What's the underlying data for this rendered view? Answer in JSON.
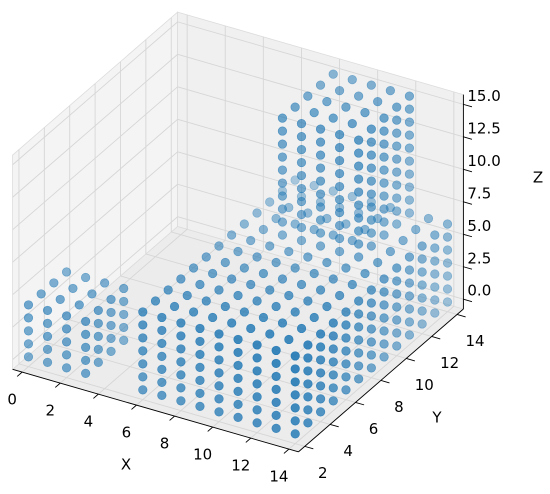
{
  "chart_data": {
    "type": "scatter3d",
    "color": "#1f77b4",
    "xlabel": "X",
    "ylabel": "Y",
    "zlabel": "Z",
    "xlim": [
      -0.5,
      14.5
    ],
    "ylim": [
      1.5,
      14.5
    ],
    "zlim": [
      -0.75,
      15.75
    ],
    "xticks": [
      0,
      2,
      4,
      6,
      8,
      10,
      12,
      14
    ],
    "yticks": [
      2,
      4,
      6,
      8,
      10,
      12,
      14
    ],
    "zticks": [
      {
        "value": 0,
        "label": "0.0"
      },
      {
        "value": 2.5,
        "label": "2.5"
      },
      {
        "value": 5,
        "label": "5.0"
      },
      {
        "value": 7.5,
        "label": "7.5"
      },
      {
        "value": 10,
        "label": "10.0"
      },
      {
        "value": 12.5,
        "label": "12.5"
      },
      {
        "value": 15,
        "label": "15.0"
      }
    ],
    "grid": true,
    "x": [
      0,
      0,
      0,
      0,
      1,
      1,
      1,
      1,
      2,
      2,
      2,
      2,
      3,
      3,
      3,
      3,
      0,
      0,
      0,
      0,
      1,
      1,
      1,
      1,
      2,
      2,
      2,
      2,
      3,
      3,
      3,
      3,
      3,
      3,
      3,
      3,
      3,
      3,
      3,
      3,
      3,
      3,
      3,
      3,
      6,
      6,
      6,
      6,
      6,
      6,
      6,
      6,
      6,
      6,
      6,
      6,
      6,
      7,
      7,
      7,
      7,
      7,
      7,
      7,
      7,
      7,
      7,
      7,
      7,
      7,
      8,
      8,
      8,
      8,
      8,
      8,
      8,
      8,
      8,
      8,
      8,
      8,
      8,
      9,
      9,
      9,
      9,
      9,
      9,
      9,
      9,
      9,
      9,
      9,
      9,
      9,
      10,
      10,
      10,
      10,
      10,
      10,
      10,
      10,
      10,
      10,
      10,
      10,
      10,
      11,
      11,
      11,
      11,
      11,
      11,
      11,
      11,
      11,
      11,
      11,
      11,
      11,
      12,
      12,
      12,
      12,
      12,
      12,
      12,
      12,
      12,
      12,
      12,
      12,
      12,
      13,
      13,
      13,
      13,
      13,
      13,
      13,
      13,
      13,
      13,
      13,
      13,
      13,
      14,
      14,
      14,
      14,
      14,
      14,
      14,
      14,
      14,
      14,
      14,
      14,
      14,
      6,
      6,
      6,
      6,
      6,
      6,
      7,
      7,
      7,
      7,
      7,
      7,
      8,
      8,
      8,
      8,
      8,
      8,
      9,
      9,
      9,
      9,
      9,
      9,
      10,
      10,
      10,
      10,
      10,
      10,
      11,
      11,
      11,
      11,
      11,
      11,
      12,
      12,
      12,
      12,
      12,
      12,
      13,
      13,
      13,
      13,
      13,
      13,
      14,
      14,
      14,
      14,
      14,
      14,
      14,
      14,
      14,
      14,
      14,
      14,
      14,
      14,
      14,
      14,
      14,
      14,
      14,
      14,
      14,
      14,
      14,
      14,
      14,
      14,
      14,
      14,
      14,
      14,
      14,
      14,
      14,
      14,
      14,
      14,
      14,
      14,
      14,
      14,
      14,
      14,
      14,
      14,
      14,
      14,
      14,
      14,
      14,
      14,
      14,
      14,
      14,
      14,
      14,
      14,
      14,
      14,
      14,
      14,
      14,
      14,
      14,
      14,
      14,
      14,
      14,
      14,
      14,
      14,
      14,
      14,
      14,
      14,
      14,
      14,
      14,
      14,
      8,
      8,
      8,
      8,
      8,
      9,
      9,
      9,
      9,
      9,
      10,
      10,
      10,
      10,
      10,
      11,
      11,
      11,
      11,
      11,
      12,
      12,
      12,
      12,
      12,
      8,
      8,
      8,
      8,
      8,
      8,
      8,
      8,
      9,
      9,
      9,
      9,
      9,
      9,
      9,
      9,
      10,
      10,
      10,
      10,
      10,
      10,
      10,
      10,
      11,
      11,
      11,
      11,
      11,
      11,
      11,
      11,
      12,
      12,
      12,
      12,
      12,
      12,
      12,
      12,
      12,
      12,
      12,
      12,
      12,
      12,
      12,
      12,
      12,
      12,
      12,
      12,
      12,
      12,
      12,
      12,
      12,
      12,
      12,
      12,
      12,
      12,
      12,
      12,
      12,
      12,
      12,
      12,
      12,
      12,
      12,
      12
    ],
    "y": [
      2,
      3,
      4,
      5,
      2,
      3,
      4,
      5,
      2,
      3,
      4,
      5,
      2,
      3,
      4,
      5,
      2,
      2,
      2,
      2,
      2,
      2,
      2,
      2,
      2,
      2,
      2,
      2,
      2,
      2,
      2,
      2,
      3,
      3,
      3,
      3,
      4,
      4,
      4,
      4,
      5,
      5,
      5,
      5,
      2,
      3,
      4,
      5,
      6,
      7,
      8,
      9,
      10,
      11,
      12,
      13,
      14,
      2,
      3,
      4,
      5,
      6,
      7,
      8,
      9,
      10,
      11,
      12,
      13,
      14,
      2,
      3,
      4,
      5,
      6,
      7,
      8,
      9,
      10,
      11,
      12,
      13,
      14,
      2,
      3,
      4,
      5,
      6,
      7,
      8,
      9,
      10,
      11,
      12,
      13,
      14,
      2,
      3,
      4,
      5,
      6,
      7,
      8,
      9,
      10,
      11,
      12,
      13,
      14,
      2,
      3,
      4,
      5,
      6,
      7,
      8,
      9,
      10,
      11,
      12,
      13,
      14,
      2,
      3,
      4,
      5,
      6,
      7,
      8,
      9,
      10,
      11,
      12,
      13,
      14,
      2,
      3,
      4,
      5,
      6,
      7,
      8,
      9,
      10,
      11,
      12,
      13,
      14,
      2,
      3,
      4,
      5,
      6,
      7,
      8,
      9,
      10,
      11,
      12,
      13,
      14,
      2,
      2,
      2,
      2,
      2,
      2,
      2,
      2,
      2,
      2,
      2,
      2,
      2,
      2,
      2,
      2,
      2,
      2,
      2,
      2,
      2,
      2,
      2,
      2,
      2,
      2,
      2,
      2,
      2,
      2,
      2,
      2,
      2,
      2,
      2,
      2,
      2,
      2,
      2,
      2,
      2,
      2,
      2,
      2,
      2,
      2,
      2,
      2,
      2,
      2,
      2,
      2,
      2,
      2,
      3,
      3,
      3,
      3,
      3,
      3,
      4,
      4,
      4,
      4,
      4,
      4,
      5,
      5,
      5,
      5,
      5,
      5,
      6,
      6,
      6,
      6,
      6,
      6,
      7,
      7,
      7,
      7,
      7,
      7,
      8,
      8,
      8,
      8,
      8,
      8,
      9,
      9,
      9,
      9,
      9,
      9,
      10,
      10,
      10,
      10,
      10,
      10,
      11,
      11,
      11,
      11,
      11,
      11,
      12,
      12,
      12,
      12,
      12,
      12,
      13,
      13,
      13,
      13,
      13,
      13,
      14,
      14,
      14,
      14,
      14,
      14,
      10,
      11,
      12,
      13,
      14,
      10,
      11,
      12,
      13,
      14,
      10,
      11,
      12,
      13,
      14,
      10,
      11,
      12,
      13,
      14,
      10,
      11,
      12,
      13,
      14,
      10,
      10,
      10,
      10,
      10,
      10,
      10,
      10,
      10,
      10,
      10,
      10,
      10,
      10,
      10,
      10,
      10,
      10,
      10,
      10,
      10,
      10,
      10,
      10,
      10,
      10,
      10,
      10,
      10,
      10,
      10,
      10,
      10,
      10,
      10,
      10,
      10,
      10,
      10,
      10,
      11,
      11,
      11,
      11,
      11,
      11,
      11,
      11,
      12,
      12,
      12,
      12,
      12,
      12,
      12,
      12,
      13,
      13,
      13,
      13,
      13,
      13,
      13,
      13,
      14,
      14,
      14,
      14,
      14,
      14,
      14,
      14
    ],
    "z": [
      4,
      4,
      4,
      4,
      4,
      4,
      4,
      4,
      4,
      4,
      4,
      4,
      4,
      4,
      4,
      4,
      0,
      1,
      2,
      3,
      0,
      1,
      2,
      3,
      0,
      1,
      2,
      3,
      0,
      1,
      2,
      3,
      0,
      1,
      2,
      3,
      0,
      1,
      2,
      3,
      0,
      1,
      2,
      3,
      6,
      6,
      6,
      6,
      6,
      6,
      6,
      6,
      6,
      6,
      6,
      6,
      6,
      6,
      6,
      6,
      6,
      6,
      6,
      6,
      6,
      6,
      6,
      6,
      6,
      6,
      6,
      6,
      6,
      6,
      6,
      6,
      6,
      6,
      6,
      6,
      6,
      6,
      6,
      6,
      6,
      6,
      6,
      6,
      6,
      6,
      6,
      6,
      6,
      6,
      6,
      6,
      6,
      6,
      6,
      6,
      6,
      6,
      6,
      6,
      6,
      6,
      6,
      6,
      6,
      6,
      6,
      6,
      6,
      6,
      6,
      6,
      6,
      6,
      6,
      6,
      6,
      6,
      6,
      6,
      6,
      6,
      6,
      6,
      6,
      6,
      6,
      6,
      6,
      6,
      6,
      6,
      6,
      6,
      6,
      6,
      6,
      6,
      6,
      6,
      6,
      6,
      6,
      6,
      6,
      6,
      6,
      6,
      6,
      6,
      6,
      6,
      6,
      6,
      6,
      6,
      6,
      0,
      1,
      2,
      3,
      4,
      5,
      0,
      1,
      2,
      3,
      4,
      5,
      0,
      1,
      2,
      3,
      4,
      5,
      0,
      1,
      2,
      3,
      4,
      5,
      0,
      1,
      2,
      3,
      4,
      5,
      0,
      1,
      2,
      3,
      4,
      5,
      0,
      1,
      2,
      3,
      4,
      5,
      0,
      1,
      2,
      3,
      4,
      5,
      0,
      1,
      2,
      3,
      4,
      5,
      0,
      1,
      2,
      3,
      4,
      5,
      0,
      1,
      2,
      3,
      4,
      5,
      0,
      1,
      2,
      3,
      4,
      5,
      0,
      1,
      2,
      3,
      4,
      5,
      0,
      1,
      2,
      3,
      4,
      5,
      0,
      1,
      2,
      3,
      4,
      5,
      0,
      1,
      2,
      3,
      4,
      5,
      0,
      1,
      2,
      3,
      4,
      5,
      0,
      1,
      2,
      3,
      4,
      5,
      0,
      1,
      2,
      3,
      4,
      5,
      0,
      1,
      2,
      3,
      4,
      5,
      0,
      1,
      2,
      3,
      4,
      5,
      15,
      15,
      15,
      15,
      15,
      15,
      15,
      15,
      15,
      15,
      15,
      15,
      15,
      15,
      15,
      15,
      15,
      15,
      15,
      15,
      15,
      15,
      15,
      15,
      15,
      7,
      8,
      9,
      10,
      11,
      12,
      13,
      14,
      7,
      8,
      9,
      10,
      11,
      12,
      13,
      14,
      7,
      8,
      9,
      10,
      11,
      12,
      13,
      14,
      7,
      8,
      9,
      10,
      11,
      12,
      13,
      14,
      7,
      8,
      9,
      10,
      11,
      12,
      13,
      14,
      7,
      8,
      9,
      10,
      11,
      12,
      13,
      14,
      7,
      8,
      9,
      10,
      11,
      12,
      13,
      14,
      7,
      8,
      9,
      10,
      11,
      12,
      13,
      14,
      7,
      8,
      9,
      10,
      11,
      12,
      13,
      14
    ]
  }
}
